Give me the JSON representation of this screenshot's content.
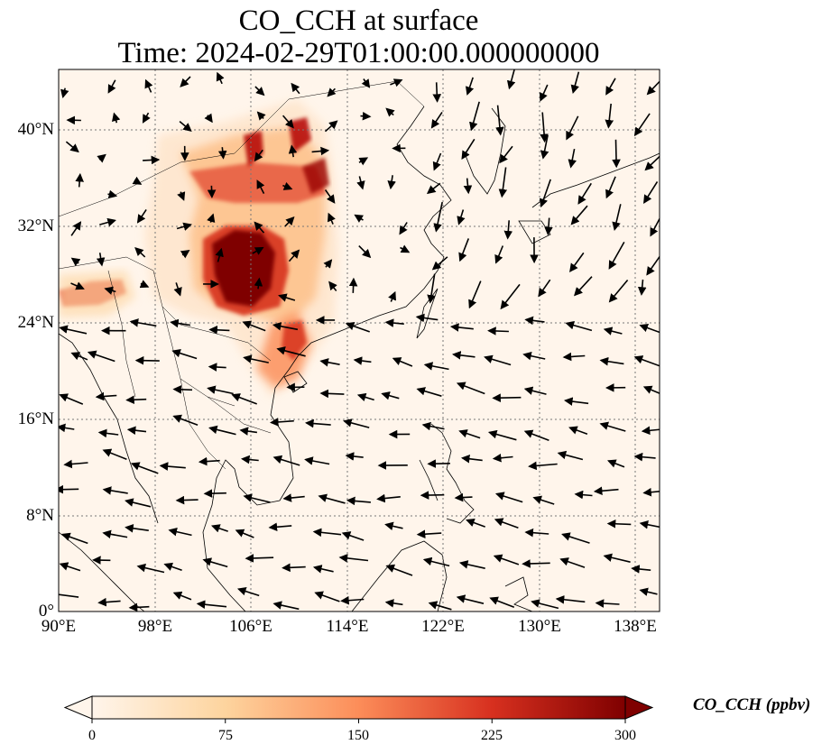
{
  "title": {
    "line1": "CO_CCH at surface",
    "line2": "Time: 2024-02-29T01:00:00.000000000"
  },
  "map": {
    "y_ticks": [
      "40°N",
      "32°N",
      "24°N",
      "16°N",
      "8°N",
      "0°"
    ],
    "x_ticks": [
      "90°E",
      "98°E",
      "106°E",
      "114°E",
      "122°E",
      "130°E",
      "138°E"
    ],
    "gridlines": "dotted",
    "overlay": "wind vectors"
  },
  "colorbar": {
    "label": "CO_CCH (ppbv)",
    "ticks": [
      "0",
      "75",
      "150",
      "225",
      "300"
    ],
    "colormap": [
      "#fff5eb",
      "#fdd49e",
      "#fc8d59",
      "#d7301f",
      "#7f0000"
    ],
    "extend": "both"
  }
}
